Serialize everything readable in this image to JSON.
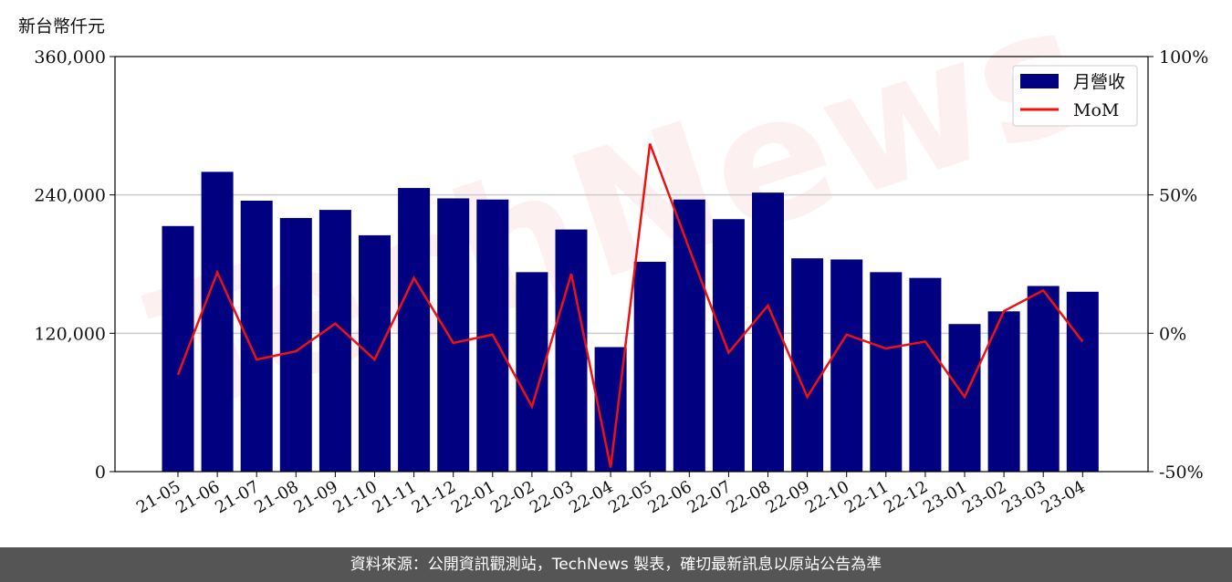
{
  "unit_label": "新台幣仟元",
  "footer_text": "資料來源：公開資訊觀測站，TechNews 製表，確切最新訊息以原站公告為準",
  "watermark_text": "TechNews",
  "colors": {
    "bar": "#000080",
    "line": "#ee1111",
    "footer_bg": "#555555"
  },
  "chart_data": {
    "type": "bar",
    "categories": [
      "21-05",
      "21-06",
      "21-07",
      "21-08",
      "21-09",
      "21-10",
      "21-11",
      "21-12",
      "22-01",
      "22-02",
      "22-03",
      "22-04",
      "22-05",
      "22-06",
      "22-07",
      "22-08",
      "22-09",
      "22-10",
      "22-11",
      "22-12",
      "23-01",
      "23-02",
      "23-03",
      "23-04"
    ],
    "series": [
      {
        "name": "月營收",
        "type": "bar",
        "axis": "left",
        "values": [
          213000,
          260000,
          235000,
          220000,
          227000,
          205000,
          246000,
          237000,
          236000,
          173000,
          210000,
          108000,
          182000,
          236000,
          219000,
          242000,
          185000,
          184000,
          173000,
          168000,
          128000,
          139000,
          161000,
          156000
        ]
      },
      {
        "name": "MoM",
        "type": "line",
        "axis": "right",
        "values": [
          -15,
          22,
          -9.5,
          -6.5,
          3.5,
          -9.5,
          20,
          -3.5,
          -0.5,
          -26.5,
          21.5,
          -48.5,
          68.5,
          30.5,
          -7,
          10,
          -23,
          -0.5,
          -5.5,
          -3,
          -23,
          8,
          15.5,
          -3
        ]
      }
    ],
    "yticks_left": [
      "0",
      "120,000",
      "240,000",
      "360,000"
    ],
    "ylim_left": [
      0,
      360000
    ],
    "yticks_right": [
      "-50%",
      "0%",
      "50%",
      "100%"
    ],
    "ylim_right": [
      -50,
      100
    ],
    "legend_position": "top-right",
    "grid": "horizontal"
  }
}
